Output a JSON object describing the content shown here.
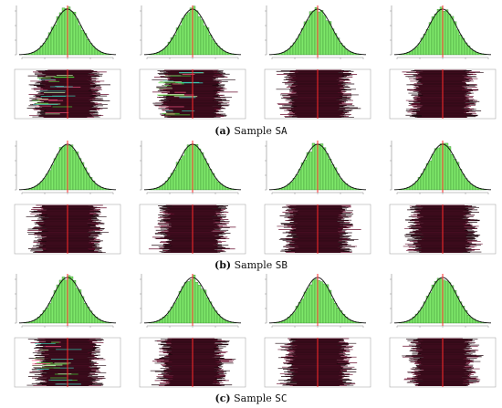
{
  "figure": {
    "colors": {
      "histogram_fill": "#7ee86a",
      "histogram_stroke": "#2f7a2a",
      "density_curve": "#111111",
      "reference_line": "#ff2a2a",
      "trace_dark": "#220810",
      "trace_line": "#6a1030",
      "trace_highlight_cyan": "#3ad9c0",
      "trace_highlight_green": "#4adf3a"
    },
    "groups": [
      {
        "caption_letter": "(a)",
        "caption_text": "Sample",
        "sample_name": "SA"
      },
      {
        "caption_letter": "(b)",
        "caption_text": "Sample",
        "sample_name": "SB"
      },
      {
        "caption_letter": "(c)",
        "caption_text": "Sample",
        "sample_name": "SC"
      }
    ]
  },
  "chart_data": [
    {
      "group": "SA",
      "column": 1,
      "type": "bar",
      "title": "",
      "xlabel": "",
      "ylabel": "",
      "distribution": "approximately normal histogram with density curve",
      "reference_line": "center",
      "trace": "chain trace with colored highlight segments"
    },
    {
      "group": "SA",
      "column": 2,
      "type": "bar",
      "title": "",
      "xlabel": "",
      "ylabel": "",
      "distribution": "approximately normal histogram with density curve",
      "reference_line": "center",
      "trace": "chain trace with colored highlight segments"
    },
    {
      "group": "SA",
      "column": 3,
      "type": "bar",
      "title": "",
      "xlabel": "",
      "ylabel": "",
      "distribution": "approximately normal histogram with density curve",
      "reference_line": "center",
      "trace": "dense chain trace"
    },
    {
      "group": "SA",
      "column": 4,
      "type": "bar",
      "title": "",
      "xlabel": "",
      "ylabel": "",
      "distribution": "approximately normal histogram with density curve",
      "reference_line": "center",
      "trace": "dense chain trace"
    },
    {
      "group": "SB",
      "column": 1,
      "type": "bar",
      "title": "",
      "xlabel": "",
      "ylabel": "",
      "distribution": "approximately normal histogram with density curve",
      "reference_line": "center",
      "trace": "dense chain trace"
    },
    {
      "group": "SB",
      "column": 2,
      "type": "bar",
      "title": "",
      "xlabel": "",
      "ylabel": "",
      "distribution": "approximately normal histogram with density curve",
      "reference_line": "center",
      "trace": "dense chain trace"
    },
    {
      "group": "SB",
      "column": 3,
      "type": "bar",
      "title": "",
      "xlabel": "",
      "ylabel": "",
      "distribution": "approximately normal histogram with density curve",
      "reference_line": "center",
      "trace": "dense chain trace"
    },
    {
      "group": "SB",
      "column": 4,
      "type": "bar",
      "title": "",
      "xlabel": "",
      "ylabel": "",
      "distribution": "approximately normal histogram with density curve",
      "reference_line": "center",
      "trace": "dense chain trace"
    },
    {
      "group": "SC",
      "column": 1,
      "type": "bar",
      "title": "",
      "xlabel": "",
      "ylabel": "",
      "distribution": "approximately normal histogram with density curve",
      "reference_line": "center",
      "trace": "chain trace with colored highlight segments"
    },
    {
      "group": "SC",
      "column": 2,
      "type": "bar",
      "title": "",
      "xlabel": "",
      "ylabel": "",
      "distribution": "approximately normal histogram with density curve",
      "reference_line": "center",
      "trace": "dense chain trace"
    },
    {
      "group": "SC",
      "column": 3,
      "type": "bar",
      "title": "",
      "xlabel": "",
      "ylabel": "",
      "distribution": "approximately normal histogram with density curve",
      "reference_line": "center",
      "trace": "dense chain trace"
    },
    {
      "group": "SC",
      "column": 4,
      "type": "bar",
      "title": "",
      "xlabel": "",
      "ylabel": "",
      "distribution": "approximately normal histogram with density curve",
      "reference_line": "center",
      "trace": "dense chain trace"
    }
  ]
}
